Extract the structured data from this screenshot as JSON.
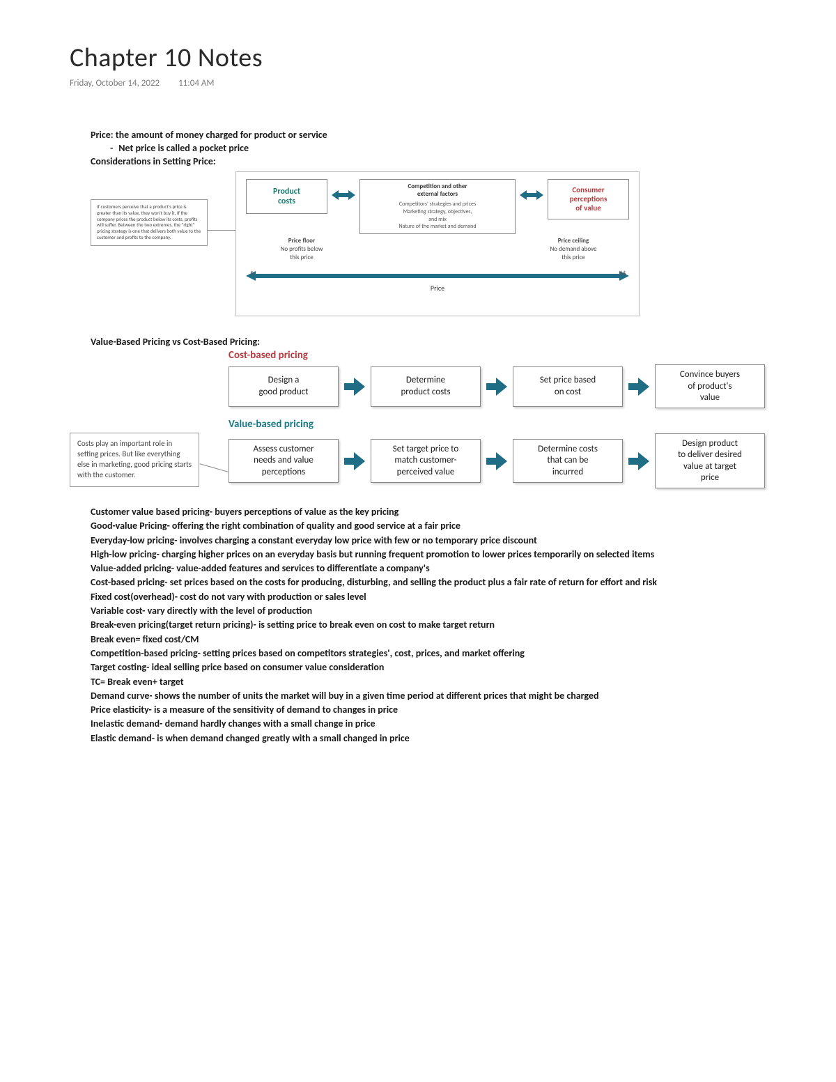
{
  "title": "Chapter 10 Notes",
  "date": "Friday, October 14, 2022",
  "time": "11:04 AM",
  "intro": {
    "line1": "Price: the amount of money charged for product or service",
    "line2": "Net price is called a pocket price",
    "line3": "Considerations in Setting Price:"
  },
  "callout1": "If customers perceive that a product's price is greater than its value, they won't buy it. If the company prices the product below its costs, profits will suffer. Between the two extremes, the \"right\" pricing strategy is one that delivers both value to the customer and profits to the company.",
  "diagram1": {
    "colors": {
      "border": "#888888",
      "arrow": "#1f6e85",
      "bg": "#ffffff"
    },
    "left_box": "Product\ncosts",
    "mid_title": "Competition and other\nexternal factors",
    "mid_body": "Competitors' strategies and prices\nMarketing strategy, objectives,\nand mix\nNature of the market and demand",
    "right_box": "Consumer\nperceptions\nof value",
    "left_sub_title": "Price floor",
    "left_sub_body": "No profits below\nthis price",
    "right_sub_title": "Price ceiling",
    "right_sub_body": "No demand above\nthis price",
    "dollar_left": "$",
    "dollar_right": "$$",
    "price_label": "Price"
  },
  "section2_title": "Value-Based Pricing vs Cost-Based Pricing:",
  "diagram2": {
    "colors": {
      "arrow": "#1f6e85",
      "cost_title": "#b73a3e",
      "value_title": "#1a7a86",
      "box_border": "#888888",
      "shadow": "rgba(0,0,0,0.18)"
    },
    "cost_title": "Cost-based pricing",
    "cost_steps": [
      "Design a\ngood product",
      "Determine\nproduct costs",
      "Set price based\non cost",
      "Convince buyers\nof product's\nvalue"
    ],
    "value_title": "Value-based pricing",
    "value_steps": [
      "Assess customer\nneeds and value\nperceptions",
      "Set target price to\nmatch customer-\nperceived value",
      "Determine costs\nthat can be\nincurred",
      "Design product\nto deliver desired\nvalue at target\nprice"
    ]
  },
  "callout2": "Costs play an important role in setting prices. But like everything else in marketing, good pricing starts with the customer.",
  "definitions": [
    "Customer value based pricing- buyers perceptions of value as the key pricing",
    "Good-value Pricing- offering the right combination of quality and good service at a fair price",
    "Everyday-low pricing- involves charging a constant everyday low price with few or no temporary price discount",
    "High-low pricing- charging higher prices on an everyday basis but running frequent promotion to lower prices temporarily on selected items",
    "Value-added pricing- value-added features and services to differentiate a company's",
    "Cost-based pricing- set prices based on the costs for producing, disturbing, and selling the product plus a fair rate of return for effort and risk",
    "Fixed cost(overhead)- cost do not vary with production or sales level",
    "Variable cost- vary directly with the level of production",
    "Break-even pricing(target return pricing)- is setting price to break even on cost to make target return",
    "Break even= fixed cost/CM",
    "Competition-based pricing- setting prices based on competitors strategies', cost, prices, and market offering",
    "Target costing- ideal selling price based on consumer value consideration",
    "TC= Break even+ target",
    "Demand curve- shows the number of units the market will buy in a given time period at different prices that might be charged",
    "Price elasticity- is a measure of the sensitivity of demand to changes in price",
    "Inelastic demand- demand hardly changes with a small change in price",
    "Elastic demand- is when demand changed greatly with a small changed in price"
  ]
}
